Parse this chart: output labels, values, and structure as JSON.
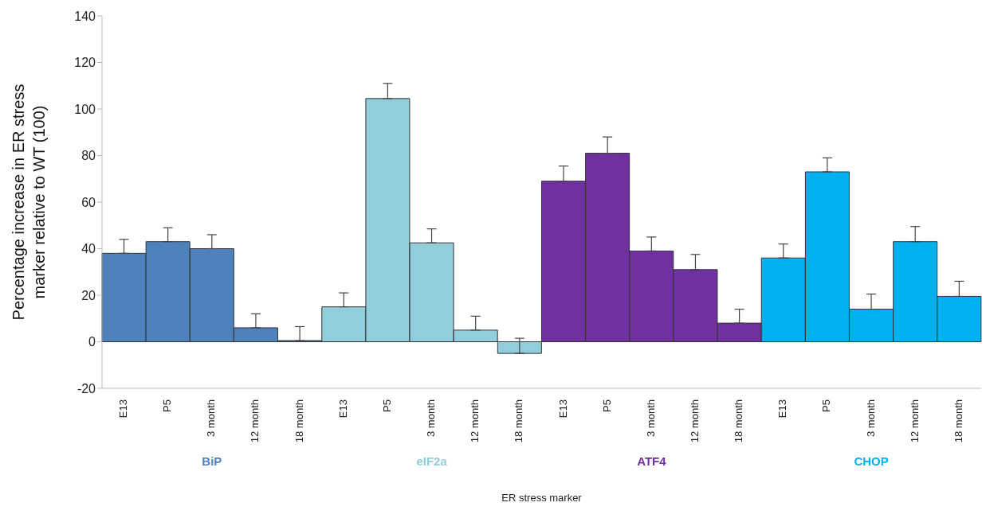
{
  "chart_data": {
    "type": "bar",
    "xlabel": "ER stress marker",
    "ylabel": "Percentage increase in ER stress marker relative to WT (100)",
    "stacked": true,
    "categories": [
      "E13",
      "P5",
      "3 month",
      "12 month",
      "18 month",
      "E13",
      "P5",
      "3 month",
      "12 month",
      "18 month",
      "E13",
      "P5",
      "3 month",
      "12 month",
      "18 month",
      "E13",
      "P5",
      "3 month",
      "12 month",
      "18 month"
    ],
    "series": [
      {
        "name": "BiP",
        "color": "#4f81bd",
        "values": [
          38,
          43,
          40,
          6,
          0.5,
          null,
          null,
          null,
          null,
          null,
          null,
          null,
          null,
          null,
          null,
          null,
          null,
          null,
          null,
          null
        ],
        "errors": [
          [
            38,
            44
          ],
          [
            43,
            49
          ],
          [
            40,
            46
          ],
          [
            6,
            12
          ],
          [
            0.5,
            6.5
          ],
          null,
          null,
          null,
          null,
          null,
          null,
          null,
          null,
          null,
          null,
          null,
          null,
          null,
          null,
          null
        ]
      },
      {
        "name": "eIF2a",
        "color": "#92cddc",
        "values": [
          null,
          null,
          null,
          null,
          null,
          15,
          104.5,
          42.5,
          5,
          -5,
          null,
          null,
          null,
          null,
          null,
          null,
          null,
          null,
          null,
          null
        ],
        "errors": [
          null,
          null,
          null,
          null,
          null,
          [
            15,
            21
          ],
          [
            104.5,
            111
          ],
          [
            42.5,
            48.5
          ],
          [
            5,
            11
          ],
          [
            -5,
            1.5
          ],
          null,
          null,
          null,
          null,
          null,
          null,
          null,
          null,
          null,
          null
        ]
      },
      {
        "name": "ATF4",
        "color": "#7030a0",
        "values": [
          null,
          null,
          null,
          null,
          null,
          null,
          null,
          null,
          null,
          null,
          69,
          81,
          39,
          31,
          8,
          null,
          null,
          null,
          null,
          null
        ],
        "errors": [
          null,
          null,
          null,
          null,
          null,
          null,
          null,
          null,
          null,
          null,
          [
            69,
            75.5
          ],
          [
            81,
            88
          ],
          [
            39,
            45
          ],
          [
            31,
            37.5
          ],
          [
            8,
            14
          ],
          null,
          null,
          null,
          null,
          null
        ]
      },
      {
        "name": "CHOP",
        "color": "#00b0f0",
        "values": [
          null,
          null,
          null,
          null,
          null,
          null,
          null,
          null,
          null,
          null,
          null,
          null,
          null,
          null,
          null,
          36,
          73,
          14,
          43,
          19.5
        ],
        "errors": [
          null,
          null,
          null,
          null,
          null,
          null,
          null,
          null,
          null,
          null,
          null,
          null,
          null,
          null,
          null,
          [
            36,
            42
          ],
          [
            73,
            79
          ],
          [
            14,
            20.5
          ],
          [
            43,
            49.5
          ],
          [
            19.5,
            26
          ]
        ]
      }
    ],
    "ylim": [
      -20,
      140
    ],
    "yticks": [
      -20,
      0,
      20,
      40,
      60,
      80,
      100,
      120,
      140
    ]
  }
}
